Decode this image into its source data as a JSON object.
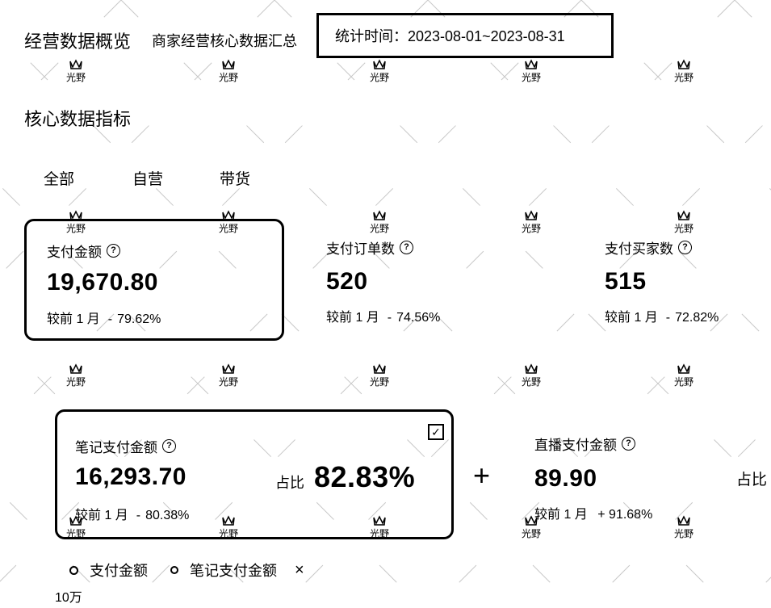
{
  "header": {
    "title": "经营数据概览",
    "subtitle": "商家经营核心数据汇总",
    "date_range": "统计时间：2023-08-01~2023-08-31"
  },
  "section_title": "核心数据指标",
  "tabs": [
    "全部",
    "自营",
    "带货"
  ],
  "metrics": [
    {
      "label": "支付金额",
      "value": "19,670.80",
      "compare_label": "较前 1 月",
      "change": "79.62%"
    },
    {
      "label": "支付订单数",
      "value": "520",
      "compare_label": "较前 1 月",
      "change": "74.56%"
    },
    {
      "label": "支付买家数",
      "value": "515",
      "compare_label": "较前 1 月",
      "change": "72.82%"
    }
  ],
  "note_card": {
    "label": "笔记支付金额",
    "value": "16,293.70",
    "compare_label": "较前 1 月",
    "change": "80.38%",
    "share_label": "占比",
    "share_value": "82.83%",
    "checked": true
  },
  "plus_sign": "+",
  "live_card": {
    "label": "直播支付金额",
    "value": "89.90",
    "compare_label": "较前 1 月",
    "change": "+ 91.68%",
    "share_label": "占比"
  },
  "legend": {
    "items": [
      "支付金额",
      "笔记支付金额"
    ],
    "close_symbol": "×"
  },
  "axis_label": "10万",
  "help_symbol": "?",
  "check_symbol": "✓",
  "change_prefix": "-",
  "watermark_text": "光野",
  "colors": {
    "text": "#000000",
    "background": "#ffffff",
    "border": "#000000"
  }
}
